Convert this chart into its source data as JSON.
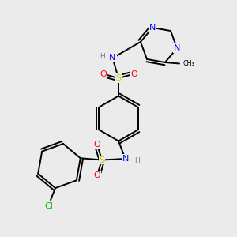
{
  "background_color": "#EBEBEB",
  "bond_color": "#000000",
  "atom_colors": {
    "N": "#0000FF",
    "S": "#CCCC00",
    "O": "#FF0000",
    "Cl": "#00BB00",
    "C": "#000000",
    "H": "#708090"
  },
  "figsize": [
    3.0,
    3.0
  ],
  "dpi": 100
}
